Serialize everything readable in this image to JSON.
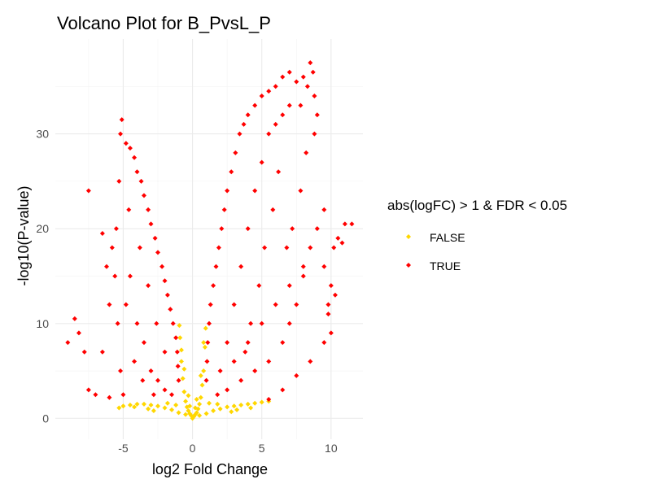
{
  "chart_data": {
    "type": "scatter",
    "title": "Volcano Plot for B_PvsL_P",
    "xlabel": "log2 Fold Change",
    "ylabel": "-log10(P-value)",
    "xlim": [
      -9.9,
      12.3
    ],
    "ylim": [
      -2.2,
      40.0
    ],
    "xticks": [
      -5,
      0,
      5,
      10
    ],
    "yticks": [
      0,
      10,
      20,
      30
    ],
    "grid": true,
    "legend": {
      "title": "abs(logFC) > 1 & FDR < 0.05",
      "position": "right",
      "entries": [
        {
          "label": "FALSE",
          "color": "#FFD700"
        },
        {
          "label": "TRUE",
          "color": "#FF0000"
        }
      ]
    },
    "series": [
      {
        "name": "FALSE",
        "color": "#FFD700",
        "points": [
          [
            0.0,
            0.0
          ],
          [
            0.1,
            0.2
          ],
          [
            -0.1,
            0.3
          ],
          [
            0.2,
            0.4
          ],
          [
            -0.2,
            0.5
          ],
          [
            0.3,
            0.6
          ],
          [
            -0.3,
            0.8
          ],
          [
            0.4,
            1.0
          ],
          [
            -0.4,
            1.2
          ],
          [
            0.5,
            1.5
          ],
          [
            -0.5,
            1.8
          ],
          [
            0.6,
            2.2
          ],
          [
            -0.6,
            2.8
          ],
          [
            0.7,
            3.5
          ],
          [
            -0.7,
            4.2
          ],
          [
            0.8,
            5.0
          ],
          [
            -0.8,
            6.0
          ],
          [
            0.9,
            7.5
          ],
          [
            -0.9,
            8.5
          ],
          [
            0.95,
            9.5
          ],
          [
            -0.95,
            9.8
          ],
          [
            0.5,
            0.3
          ],
          [
            -0.5,
            0.4
          ],
          [
            1.0,
            0.5
          ],
          [
            -1.0,
            0.6
          ],
          [
            1.5,
            0.8
          ],
          [
            -1.5,
            0.9
          ],
          [
            2.0,
            1.0
          ],
          [
            -2.0,
            1.1
          ],
          [
            2.5,
            1.2
          ],
          [
            -2.5,
            1.3
          ],
          [
            3.0,
            1.3
          ],
          [
            -3.0,
            1.4
          ],
          [
            3.5,
            1.4
          ],
          [
            -3.5,
            1.5
          ],
          [
            4.0,
            1.5
          ],
          [
            -4.0,
            1.5
          ],
          [
            4.5,
            1.6
          ],
          [
            -4.5,
            1.4
          ],
          [
            5.0,
            1.7
          ],
          [
            -5.0,
            1.3
          ],
          [
            5.5,
            1.8
          ],
          [
            -5.3,
            1.1
          ],
          [
            3.2,
            0.9
          ],
          [
            -3.2,
            1.0
          ],
          [
            1.2,
            1.6
          ],
          [
            -1.2,
            1.4
          ],
          [
            0.3,
            2.0
          ],
          [
            -0.3,
            2.4
          ],
          [
            0.6,
            4.5
          ],
          [
            -0.6,
            5.2
          ],
          [
            0.8,
            8.0
          ],
          [
            -0.8,
            7.2
          ],
          [
            1.8,
            1.5
          ],
          [
            -1.8,
            1.6
          ],
          [
            2.8,
            0.7
          ],
          [
            -2.8,
            0.8
          ],
          [
            0.2,
            1.1
          ],
          [
            -0.2,
            1.3
          ],
          [
            4.2,
            1.1
          ],
          [
            -4.2,
            1.2
          ]
        ]
      },
      {
        "name": "TRUE",
        "color": "#FF0000",
        "points": [
          [
            -5.1,
            31.5
          ],
          [
            -5.2,
            30.0
          ],
          [
            -4.8,
            29.0
          ],
          [
            -4.5,
            28.5
          ],
          [
            -4.2,
            27.5
          ],
          [
            -4.0,
            26.0
          ],
          [
            -3.7,
            25.0
          ],
          [
            -3.5,
            23.5
          ],
          [
            -3.2,
            22.0
          ],
          [
            -3.0,
            20.5
          ],
          [
            -2.7,
            19.0
          ],
          [
            -2.5,
            17.5
          ],
          [
            -2.2,
            16.0
          ],
          [
            -2.0,
            14.5
          ],
          [
            -1.8,
            13.0
          ],
          [
            -1.6,
            11.5
          ],
          [
            -1.4,
            10.0
          ],
          [
            -1.2,
            8.5
          ],
          [
            -1.1,
            7.0
          ],
          [
            -1.05,
            5.5
          ],
          [
            -1.0,
            4.0
          ],
          [
            -5.5,
            20.0
          ],
          [
            -5.3,
            25.0
          ],
          [
            -5.6,
            15.0
          ],
          [
            -5.4,
            10.0
          ],
          [
            -5.2,
            5.0
          ],
          [
            -5.0,
            2.5
          ],
          [
            -4.5,
            15.0
          ],
          [
            -4.0,
            10.0
          ],
          [
            -3.5,
            8.0
          ],
          [
            -3.0,
            5.0
          ],
          [
            -2.5,
            4.0
          ],
          [
            -2.0,
            3.0
          ],
          [
            -1.5,
            2.5
          ],
          [
            -4.6,
            22.0
          ],
          [
            -3.8,
            18.0
          ],
          [
            -3.2,
            14.0
          ],
          [
            -2.6,
            10.0
          ],
          [
            -2.0,
            7.0
          ],
          [
            -6.5,
            19.5
          ],
          [
            -6.2,
            16.0
          ],
          [
            -6.0,
            12.0
          ],
          [
            -6.5,
            7.0
          ],
          [
            -7.5,
            3.0
          ],
          [
            -7.0,
            2.5
          ],
          [
            -6.0,
            2.2
          ],
          [
            -8.5,
            10.5
          ],
          [
            -8.2,
            9.0
          ],
          [
            -7.8,
            7.0
          ],
          [
            -7.5,
            24.0
          ],
          [
            -9.0,
            8.0
          ],
          [
            -5.8,
            18.0
          ],
          [
            -4.8,
            12.0
          ],
          [
            -4.2,
            6.0
          ],
          [
            -3.6,
            4.0
          ],
          [
            -2.8,
            2.5
          ],
          [
            1.0,
            4.0
          ],
          [
            1.05,
            6.0
          ],
          [
            1.1,
            8.0
          ],
          [
            1.2,
            10.0
          ],
          [
            1.3,
            12.0
          ],
          [
            1.5,
            14.0
          ],
          [
            1.7,
            16.0
          ],
          [
            1.9,
            18.0
          ],
          [
            2.1,
            20.0
          ],
          [
            2.3,
            22.0
          ],
          [
            2.5,
            24.0
          ],
          [
            2.8,
            26.0
          ],
          [
            3.1,
            28.0
          ],
          [
            3.4,
            30.0
          ],
          [
            3.7,
            31.0
          ],
          [
            4.0,
            32.0
          ],
          [
            4.5,
            33.0
          ],
          [
            5.0,
            34.0
          ],
          [
            5.5,
            34.5
          ],
          [
            6.0,
            35.0
          ],
          [
            6.5,
            36.0
          ],
          [
            7.0,
            36.5
          ],
          [
            7.5,
            35.5
          ],
          [
            8.0,
            36.0
          ],
          [
            8.5,
            37.5
          ],
          [
            8.7,
            36.5
          ],
          [
            8.3,
            35.0
          ],
          [
            7.8,
            33.0
          ],
          [
            2.0,
            5.0
          ],
          [
            2.5,
            8.0
          ],
          [
            3.0,
            12.0
          ],
          [
            3.5,
            16.0
          ],
          [
            4.0,
            20.0
          ],
          [
            4.5,
            24.0
          ],
          [
            5.0,
            27.0
          ],
          [
            5.5,
            30.0
          ],
          [
            6.0,
            31.0
          ],
          [
            6.5,
            32.0
          ],
          [
            7.0,
            33.0
          ],
          [
            1.8,
            2.5
          ],
          [
            2.5,
            3.0
          ],
          [
            3.5,
            4.0
          ],
          [
            4.5,
            5.0
          ],
          [
            5.5,
            6.0
          ],
          [
            6.5,
            8.0
          ],
          [
            7.0,
            10.0
          ],
          [
            7.5,
            12.0
          ],
          [
            8.0,
            15.0
          ],
          [
            8.5,
            18.0
          ],
          [
            9.0,
            20.0
          ],
          [
            9.5,
            22.0
          ],
          [
            3.0,
            6.0
          ],
          [
            4.0,
            8.0
          ],
          [
            5.0,
            10.0
          ],
          [
            6.0,
            12.0
          ],
          [
            7.0,
            14.0
          ],
          [
            8.0,
            16.0
          ],
          [
            5.5,
            2.0
          ],
          [
            6.5,
            3.0
          ],
          [
            7.5,
            4.5
          ],
          [
            8.5,
            6.0
          ],
          [
            9.5,
            8.0
          ],
          [
            10.0,
            9.0
          ],
          [
            9.8,
            11.0
          ],
          [
            10.0,
            14.0
          ],
          [
            9.5,
            16.0
          ],
          [
            10.2,
            18.0
          ],
          [
            10.5,
            19.0
          ],
          [
            11.0,
            20.5
          ],
          [
            11.5,
            20.5
          ],
          [
            10.8,
            18.5
          ],
          [
            10.3,
            13.0
          ],
          [
            9.8,
            12.0
          ],
          [
            6.8,
            18.0
          ],
          [
            7.2,
            20.0
          ],
          [
            7.8,
            24.0
          ],
          [
            8.2,
            28.0
          ],
          [
            8.8,
            30.0
          ],
          [
            9.0,
            32.0
          ],
          [
            8.8,
            34.0
          ],
          [
            6.2,
            26.0
          ],
          [
            5.8,
            22.0
          ],
          [
            5.2,
            18.0
          ],
          [
            4.8,
            14.0
          ],
          [
            4.2,
            10.0
          ],
          [
            3.8,
            7.0
          ]
        ]
      }
    ]
  }
}
